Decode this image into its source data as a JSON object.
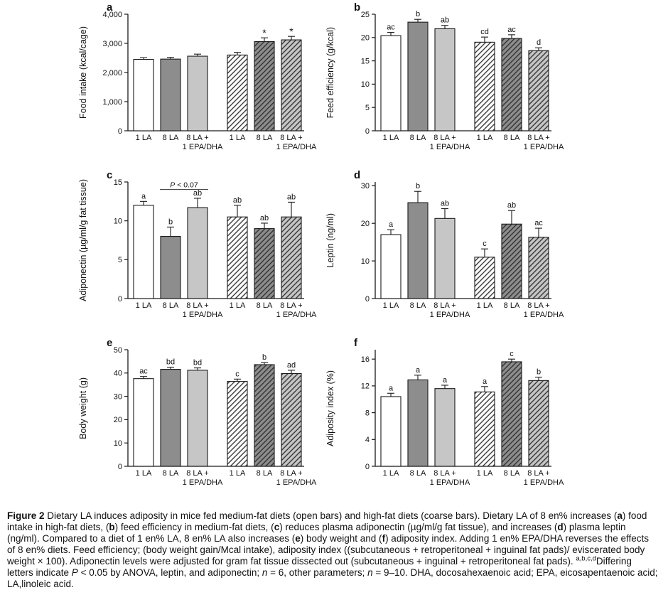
{
  "style": {
    "bar_fill_open": "#ffffff",
    "bar_fill_dark": "#8d8d8d",
    "bar_fill_light": "#c6c6c6",
    "bar_stroke": "#1a1a1a",
    "axis_color": "#1a1a1a",
    "bar_style_order": [
      "open",
      "dark",
      "light",
      "open-hatched",
      "dark-hatched",
      "light-hatched"
    ]
  },
  "chart_data": [
    {
      "id": "a",
      "panel_label": "a",
      "type": "bar",
      "ylabel": "Food intake (kcal/cage)",
      "ymax": 4000,
      "ytick_values": [
        0,
        1000,
        2000,
        3000,
        4000
      ],
      "ytick_labels": [
        "0",
        "1,000",
        "2,000",
        "3,000",
        "4,000"
      ],
      "categories": [
        "1 LA",
        "8 LA",
        "8 LA +|1 EPA/DHA",
        "1 LA",
        "8 LA",
        "8 LA +|1 EPA/DHA"
      ],
      "groups": [
        "medium-fat",
        "medium-fat",
        "medium-fat",
        "high-fat",
        "high-fat",
        "high-fat"
      ],
      "values": [
        2450,
        2460,
        2560,
        2600,
        3060,
        3120
      ],
      "errors": [
        60,
        60,
        70,
        90,
        130,
        120
      ],
      "sig_labels": [
        "",
        "",
        "",
        "",
        "*",
        "*"
      ]
    },
    {
      "id": "b",
      "panel_label": "b",
      "type": "bar",
      "ylabel": "Feed efficiency (g/kcal)",
      "ymax": 25,
      "ytick_values": [
        0,
        5,
        10,
        15,
        20,
        25
      ],
      "ytick_labels": [
        "0",
        "5",
        "10",
        "15",
        "20",
        "25"
      ],
      "categories": [
        "1 LA",
        "8 LA",
        "8 LA +|1 EPA/DHA",
        "1 LA",
        "8 LA",
        "8 LA +|1 EPA/DHA"
      ],
      "groups": [
        "medium-fat",
        "medium-fat",
        "medium-fat",
        "high-fat",
        "high-fat",
        "high-fat"
      ],
      "values": [
        20.4,
        23.3,
        21.9,
        19.0,
        19.8,
        17.2
      ],
      "errors": [
        0.7,
        0.6,
        0.7,
        1.1,
        0.8,
        0.6
      ],
      "sig_labels": [
        "ac",
        "b",
        "ab",
        "cd",
        "ac",
        "d"
      ]
    },
    {
      "id": "c",
      "panel_label": "c",
      "type": "bar",
      "ylabel": "Adiponectin (µg/ml/g fat tissue)",
      "ymax": 15,
      "ytick_values": [
        0,
        5,
        10,
        15
      ],
      "ytick_labels": [
        "0",
        "5",
        "10",
        "15"
      ],
      "categories": [
        "1 LA",
        "8 LA",
        "8 LA +|1 EPA/DHA",
        "1 LA",
        "8 LA",
        "8 LA +|1 EPA/DHA"
      ],
      "groups": [
        "medium-fat",
        "medium-fat",
        "medium-fat",
        "high-fat",
        "high-fat",
        "high-fat"
      ],
      "values": [
        12.0,
        8.0,
        11.7,
        10.5,
        9.0,
        10.5
      ],
      "errors": [
        0.5,
        1.2,
        1.2,
        1.5,
        0.7,
        1.9
      ],
      "sig_labels": [
        "a",
        "b",
        "ab",
        "ab",
        "ab",
        "ab"
      ],
      "annotation": {
        "text": "P < 0.07",
        "between_bars": [
          1,
          2
        ],
        "y": 14.3
      }
    },
    {
      "id": "d",
      "panel_label": "d",
      "type": "bar",
      "ylabel": "Leptin (ng/ml)",
      "ymax": 31,
      "ytick_values": [
        0,
        10,
        20,
        30
      ],
      "ytick_labels": [
        "0",
        "10",
        "20",
        "30"
      ],
      "categories": [
        "1 LA",
        "8 LA",
        "8 LA +|1 EPA/DHA",
        "1 LA",
        "8 LA",
        "8 LA +|1 EPA/DHA"
      ],
      "groups": [
        "medium-fat",
        "medium-fat",
        "medium-fat",
        "high-fat",
        "high-fat",
        "high-fat"
      ],
      "values": [
        17.0,
        25.5,
        21.3,
        11.0,
        19.8,
        16.3
      ],
      "errors": [
        1.3,
        3.0,
        2.6,
        2.2,
        3.6,
        2.4
      ],
      "sig_labels": [
        "a",
        "b",
        "ab",
        "c",
        "ab",
        "ac"
      ]
    },
    {
      "id": "e",
      "panel_label": "e",
      "type": "bar",
      "ylabel": "Body weight (g)",
      "ymax": 50,
      "ytick_values": [
        0,
        10,
        20,
        30,
        40,
        50
      ],
      "ytick_labels": [
        "0",
        "10",
        "20",
        "30",
        "40",
        "50"
      ],
      "categories": [
        "1 LA",
        "8 LA",
        "8 LA +|1 EPA/DHA",
        "1 LA",
        "8 LA",
        "8 LA +|1 EPA/DHA"
      ],
      "groups": [
        "medium-fat",
        "medium-fat",
        "medium-fat",
        "high-fat",
        "high-fat",
        "high-fat"
      ],
      "values": [
        37.6,
        41.6,
        41.2,
        36.4,
        43.6,
        39.8
      ],
      "errors": [
        0.9,
        0.9,
        1.0,
        1.0,
        0.9,
        1.4
      ],
      "sig_labels": [
        "ac",
        "bd",
        "bd",
        "c",
        "b",
        "ad"
      ]
    },
    {
      "id": "f",
      "panel_label": "f",
      "type": "bar",
      "ylabel": "Adiposity index (%)",
      "ymax": 17.4,
      "ytick_values": [
        0,
        4,
        8,
        12,
        16
      ],
      "ytick_labels": [
        "0",
        "4",
        "8",
        "12",
        "16"
      ],
      "categories": [
        "1 LA",
        "8 LA",
        "8 LA +|1 EPA/DHA",
        "1 LA",
        "8 LA",
        "8 LA +|1 EPA/DHA"
      ],
      "groups": [
        "medium-fat",
        "medium-fat",
        "medium-fat",
        "high-fat",
        "high-fat",
        "high-fat"
      ],
      "values": [
        10.4,
        12.9,
        11.6,
        11.1,
        15.6,
        12.8
      ],
      "errors": [
        0.5,
        0.7,
        0.5,
        0.8,
        0.4,
        0.5
      ],
      "sig_labels": [
        "a",
        "a",
        "a",
        "a",
        "c",
        "b"
      ]
    }
  ],
  "caption": {
    "segments": [
      {
        "t": "Figure 2 ",
        "b": true
      },
      {
        "t": " Dietary LA induces adiposity in mice fed medium-fat diets (open bars) and high-fat diets (coarse bars). Dietary LA of 8 en% increases ("
      },
      {
        "t": "a",
        "b": true
      },
      {
        "t": ") food intake in high-fat diets, ("
      },
      {
        "t": "b",
        "b": true
      },
      {
        "t": ") feed efficiency in medium-fat diets, ("
      },
      {
        "t": "c",
        "b": true
      },
      {
        "t": ") reduces plasma adiponectin (µg/ml/g fat tissue), and increases ("
      },
      {
        "t": "d",
        "b": true
      },
      {
        "t": ") plasma leptin (ng/ml). Compared to a diet of 1 en% LA, 8 en% LA also increases ("
      },
      {
        "t": "e",
        "b": true
      },
      {
        "t": ") body weight and ("
      },
      {
        "t": "f",
        "b": true
      },
      {
        "t": ") adiposity index. Adding 1 en% EPA/DHA reverses the effects of 8 en% diets. Feed efficiency; (body weight gain/Mcal intake), adiposity index ((subcutaneous + retroperitoneal + inguinal fat pads)/ eviscerated body weight × 100). Adiponectin levels were adjusted for gram fat tissue dissected out (subcutaneous + inguinal + retroperitoneal fat pads). "
      },
      {
        "t": "a,b,c,d",
        "sup": true
      },
      {
        "t": "Differing letters indicate "
      },
      {
        "t": "P",
        "i": true
      },
      {
        "t": " < 0.05 by ANOVA, leptin, and adiponectin; "
      },
      {
        "t": "n",
        "i": true
      },
      {
        "t": " = 6, other parameters; "
      },
      {
        "t": "n",
        "i": true
      },
      {
        "t": " = 9–10. DHA, docosahexaenoic acid; EPA, eicosapentaenoic acid; LA,linoleic acid."
      }
    ]
  }
}
